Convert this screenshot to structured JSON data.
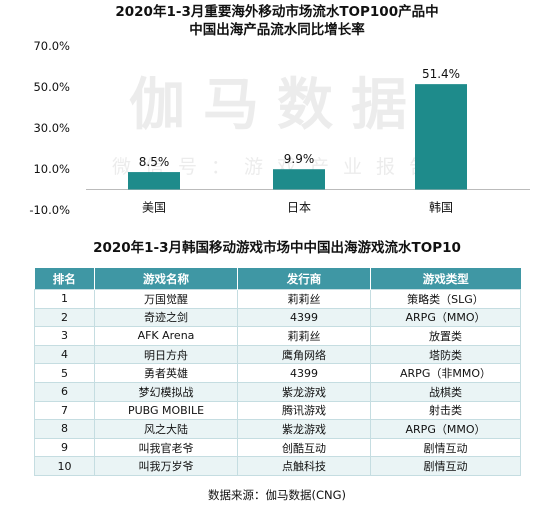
{
  "chart_data": {
    "type": "bar",
    "title": "2020年1-3月重要海外移动市场流水TOP100产品中",
    "subtitle": "中国出海产品流水同比增长率",
    "categories": [
      "美国",
      "日本",
      "韩国"
    ],
    "values": [
      8.5,
      9.9,
      51.4
    ],
    "value_labels": [
      "8.5%",
      "9.9%",
      "51.4%"
    ],
    "ytick_labels": [
      "70.0%",
      "50.0%",
      "30.0%",
      "10.0%",
      "-10.0%"
    ],
    "ylim": [
      -10,
      70
    ],
    "grid": false,
    "bar_color": "#1e8b8b"
  },
  "watermark": {
    "brand": "伽马数据",
    "tagline": "微信号：游戏产业报告"
  },
  "table": {
    "title": "2020年1-3月韩国移动游戏市场中中国出海游戏流水TOP10",
    "headers": [
      "排名",
      "游戏名称",
      "发行商",
      "游戏类型"
    ],
    "rows": [
      [
        "1",
        "万国觉醒",
        "莉莉丝",
        "策略类（SLG）"
      ],
      [
        "2",
        "奇迹之剑",
        "4399",
        "ARPG（MMO）"
      ],
      [
        "3",
        "AFK Arena",
        "莉莉丝",
        "放置类"
      ],
      [
        "4",
        "明日方舟",
        "鹰角网络",
        "塔防类"
      ],
      [
        "5",
        "勇者英雄",
        "4399",
        "ARPG（非MMO）"
      ],
      [
        "6",
        "梦幻模拟战",
        "紫龙游戏",
        "战棋类"
      ],
      [
        "7",
        "PUBG MOBILE",
        "腾讯游戏",
        "射击类"
      ],
      [
        "8",
        "风之大陆",
        "紫龙游戏",
        "ARPG（MMO）"
      ],
      [
        "9",
        "叫我官老爷",
        "创酷互动",
        "剧情互动"
      ],
      [
        "10",
        "叫我万岁爷",
        "点触科技",
        "剧情互动"
      ]
    ],
    "header_color": "#3f97a4",
    "alt_row_color": "#eaf4f5"
  },
  "source_note": "数据来源：伽马数据(CNG)"
}
